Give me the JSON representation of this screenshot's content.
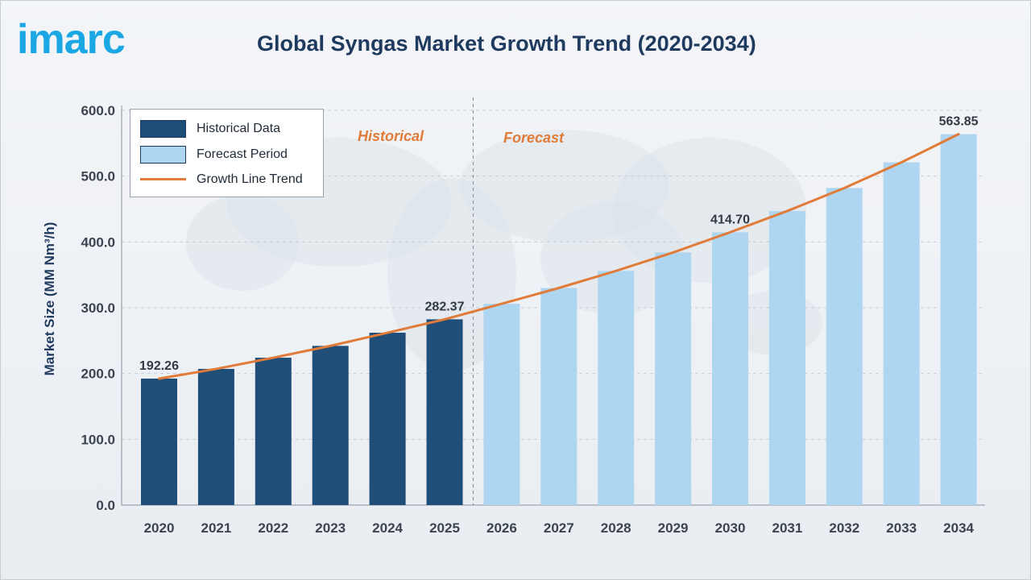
{
  "header": {
    "logo_text": "imarc",
    "logo_color": "#1aa7e4",
    "title": "Global Syngas Market Growth Trend (2020-2034)"
  },
  "chart_data": {
    "type": "bar",
    "title": "Global Syngas Market Growth Trend (2020-2034)",
    "xlabel": "",
    "ylabel": "Market Size (MM Nm³/h)",
    "ylim": [
      0,
      600
    ],
    "yticks": [
      "0.0",
      "100.0",
      "200.0",
      "300.0",
      "400.0",
      "500.0",
      "600.0"
    ],
    "grid": true,
    "legend_position": "top-left",
    "categories": [
      "2020",
      "2021",
      "2022",
      "2023",
      "2024",
      "2025",
      "2026",
      "2027",
      "2028",
      "2029",
      "2030",
      "2031",
      "2032",
      "2033",
      "2034"
    ],
    "series": [
      {
        "name": "Historical Data",
        "color": "#1f4e79",
        "values": [
          192.26,
          207,
          224,
          242,
          262,
          282.37,
          null,
          null,
          null,
          null,
          null,
          null,
          null,
          null,
          null
        ]
      },
      {
        "name": "Forecast Period",
        "color": "#aed6f1",
        "values": [
          null,
          null,
          null,
          null,
          null,
          null,
          306,
          330,
          356,
          384,
          414.7,
          447,
          482,
          521,
          563.85
        ]
      },
      {
        "name": "Growth Line Trend",
        "type": "line",
        "color": "#e07b39",
        "values": [
          192.26,
          207,
          224,
          242,
          262,
          282.37,
          306,
          330,
          356,
          384,
          414.7,
          447,
          482,
          521,
          563.85
        ]
      }
    ],
    "data_labels": [
      {
        "category": "2020",
        "text": "192.26"
      },
      {
        "category": "2025",
        "text": "282.37"
      },
      {
        "category": "2030",
        "text": "414.70"
      },
      {
        "category": "2034",
        "text": "563.85"
      }
    ],
    "annotations": {
      "historical": "Historical",
      "forecast": "Forecast",
      "color": "#e07b39"
    }
  },
  "legend": {
    "items": [
      {
        "label": "Historical Data",
        "color": "#1f4e79"
      },
      {
        "label": "Forecast Period",
        "color": "#aed6f1"
      },
      {
        "label": "Growth Line Trend",
        "color": "#e07b39"
      }
    ]
  }
}
